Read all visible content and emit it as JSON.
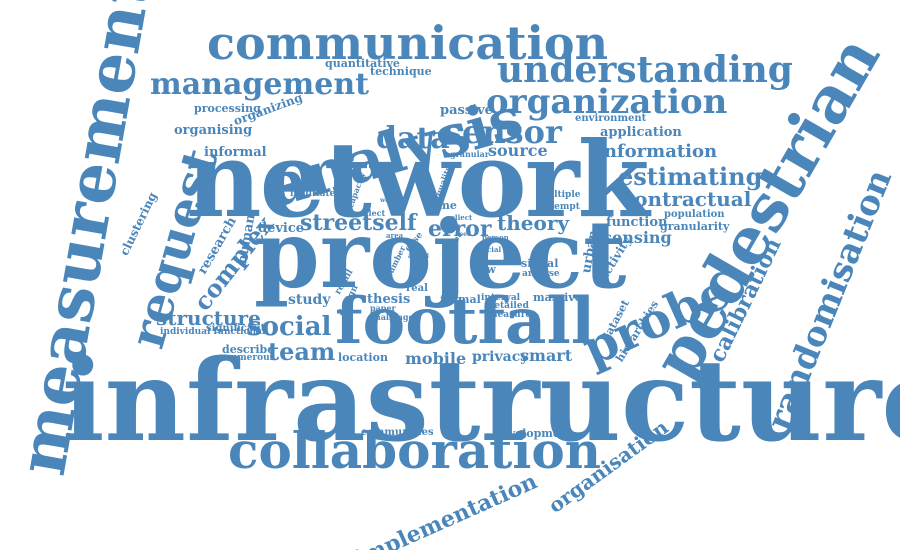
{
  "theme": {
    "word_color": "#4a86ba",
    "background": "#ffffff"
  },
  "words": {
    "infrastructure": "infrastructure",
    "network": "network",
    "project": "project",
    "footfall": "footfall",
    "measurement": "measurement",
    "pedestrian": "pedestrian",
    "communication": "communication",
    "analysis": "analysis",
    "collaboration": "collaboration",
    "understanding": "understanding",
    "organization": "organization",
    "management": "management",
    "request": "request",
    "probe": "probe",
    "randomisation": "randomisation",
    "sensor": "sensor",
    "data": "data",
    "estimating": "estimating",
    "social": "social",
    "streetself": "streetself",
    "error": "error",
    "theory": "theory",
    "team": "team",
    "calibration": "calibration",
    "complex": "complex",
    "structure": "structure",
    "information": "information",
    "contractual": "contractual",
    "source": "source",
    "sensing": "sensing",
    "mobile": "mobile",
    "smart": "smart",
    "privacy": "privacy",
    "study": "study",
    "thesis": "thesis",
    "urban": "urban",
    "implementation": "implementation",
    "organisation": "organisation",
    "application": "application",
    "passive": "passive",
    "informal": "informal",
    "organising": "organising",
    "organizing": "organizing",
    "processing": "processing",
    "quantitative": "quantitative",
    "technique": "technique",
    "environment": "environment",
    "human": "human",
    "research": "research",
    "device": "device",
    "function": "function",
    "population": "population",
    "granularity": "granularity",
    "activity": "activity",
    "dataset": "dataset",
    "hierarchies": "hierarchies",
    "signal": "signal",
    "analyse": "analyse",
    "flow": "flow",
    "formal": "formal",
    "interval": "interval",
    "massive": "massive",
    "detailed": "detailed",
    "measure": "measure",
    "location": "location",
    "describe": "describe",
    "numerous": "numerous",
    "significant": "significant",
    "individual": "individual functional",
    "communities": "communities",
    "development": "development",
    "clustering": "clustering",
    "facilitate": "facilitate",
    "granular": "granular",
    "multiple": "multiple",
    "attempt": "attempt",
    "time": "time",
    "neglect": "neglect",
    "capacity": "capacity",
    "quality": "quality",
    "collect": "collect",
    "person": "person",
    "case": "case",
    "user": "user",
    "crucial": "crucial",
    "real": "real",
    "paper": "paper",
    "challenge": "challenge",
    "retail": "retail",
    "design": "design",
    "number": "number",
    "world": "world",
    "need": "need",
    "actual": "actual",
    "detail": "detail",
    "area": "area"
  }
}
